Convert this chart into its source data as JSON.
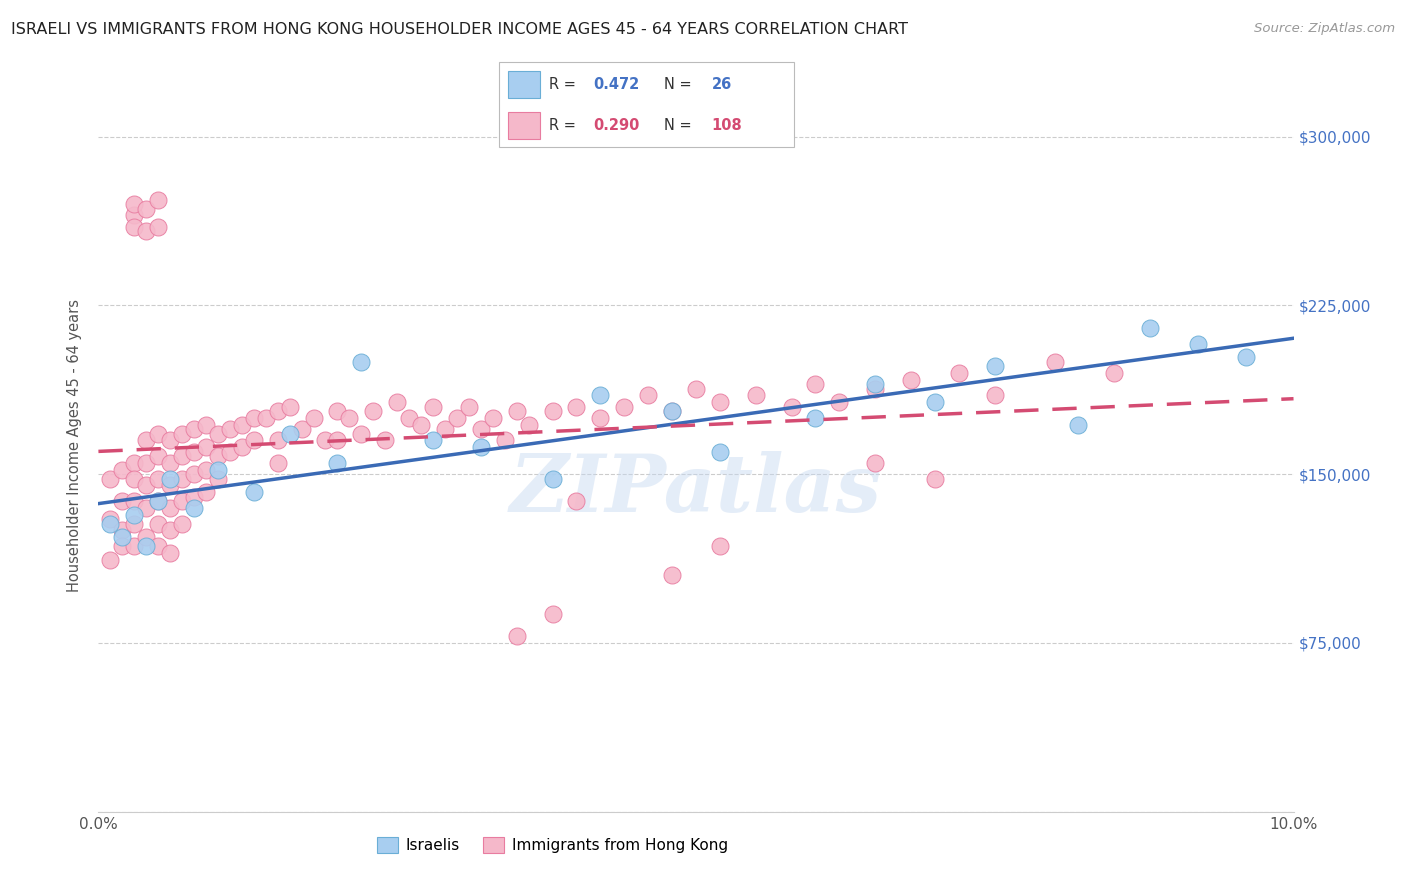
{
  "title": "ISRAELI VS IMMIGRANTS FROM HONG KONG HOUSEHOLDER INCOME AGES 45 - 64 YEARS CORRELATION CHART",
  "source": "Source: ZipAtlas.com",
  "ylabel": "Householder Income Ages 45 - 64 years",
  "xmin": 0.0,
  "xmax": 0.1,
  "ymin": 0,
  "ymax": 325000,
  "yticks": [
    0,
    75000,
    150000,
    225000,
    300000
  ],
  "right_ytick_labels": [
    "$75,000",
    "$150,000",
    "$225,000",
    "$300,000"
  ],
  "xtick_labels": [
    "0.0%",
    "",
    "",
    "",
    "",
    "10.0%"
  ],
  "israelis_color": "#a8cef0",
  "hk_color": "#f5b8ca",
  "israelis_edge": "#6aaed6",
  "hk_edge": "#e87ca0",
  "line_israelis_color": "#3a6ab5",
  "line_hk_color": "#d44b72",
  "watermark": "ZIPatlas",
  "isr_x": [
    0.001,
    0.002,
    0.003,
    0.004,
    0.005,
    0.006,
    0.008,
    0.01,
    0.013,
    0.016,
    0.02,
    0.022,
    0.028,
    0.032,
    0.038,
    0.042,
    0.048,
    0.052,
    0.06,
    0.065,
    0.07,
    0.075,
    0.082,
    0.088,
    0.092,
    0.096
  ],
  "isr_y": [
    128000,
    122000,
    132000,
    118000,
    138000,
    148000,
    135000,
    152000,
    142000,
    168000,
    155000,
    200000,
    165000,
    162000,
    148000,
    185000,
    178000,
    160000,
    175000,
    190000,
    182000,
    198000,
    172000,
    215000,
    208000,
    202000
  ],
  "hk_x": [
    0.001,
    0.001,
    0.001,
    0.002,
    0.002,
    0.002,
    0.002,
    0.003,
    0.003,
    0.003,
    0.003,
    0.003,
    0.003,
    0.003,
    0.003,
    0.004,
    0.004,
    0.004,
    0.004,
    0.004,
    0.004,
    0.004,
    0.005,
    0.005,
    0.005,
    0.005,
    0.005,
    0.005,
    0.005,
    0.005,
    0.006,
    0.006,
    0.006,
    0.006,
    0.006,
    0.006,
    0.007,
    0.007,
    0.007,
    0.007,
    0.007,
    0.008,
    0.008,
    0.008,
    0.008,
    0.009,
    0.009,
    0.009,
    0.009,
    0.01,
    0.01,
    0.01,
    0.011,
    0.011,
    0.012,
    0.012,
    0.013,
    0.013,
    0.014,
    0.015,
    0.015,
    0.015,
    0.016,
    0.017,
    0.018,
    0.019,
    0.02,
    0.02,
    0.021,
    0.022,
    0.023,
    0.024,
    0.025,
    0.026,
    0.027,
    0.028,
    0.029,
    0.03,
    0.031,
    0.032,
    0.033,
    0.034,
    0.035,
    0.036,
    0.038,
    0.04,
    0.042,
    0.044,
    0.046,
    0.048,
    0.05,
    0.052,
    0.055,
    0.058,
    0.06,
    0.062,
    0.065,
    0.068,
    0.072,
    0.075,
    0.08,
    0.085,
    0.065,
    0.07,
    0.048,
    0.052,
    0.035,
    0.038,
    0.04
  ],
  "hk_y": [
    148000,
    130000,
    112000,
    152000,
    138000,
    125000,
    118000,
    265000,
    270000,
    260000,
    155000,
    148000,
    138000,
    128000,
    118000,
    268000,
    258000,
    165000,
    155000,
    145000,
    135000,
    122000,
    272000,
    260000,
    168000,
    158000,
    148000,
    138000,
    128000,
    118000,
    165000,
    155000,
    145000,
    135000,
    125000,
    115000,
    168000,
    158000,
    148000,
    138000,
    128000,
    170000,
    160000,
    150000,
    140000,
    172000,
    162000,
    152000,
    142000,
    168000,
    158000,
    148000,
    170000,
    160000,
    172000,
    162000,
    175000,
    165000,
    175000,
    178000,
    165000,
    155000,
    180000,
    170000,
    175000,
    165000,
    178000,
    165000,
    175000,
    168000,
    178000,
    165000,
    182000,
    175000,
    172000,
    180000,
    170000,
    175000,
    180000,
    170000,
    175000,
    165000,
    178000,
    172000,
    178000,
    180000,
    175000,
    180000,
    185000,
    178000,
    188000,
    182000,
    185000,
    180000,
    190000,
    182000,
    188000,
    192000,
    195000,
    185000,
    200000,
    195000,
    155000,
    148000,
    105000,
    118000,
    78000,
    88000,
    138000
  ]
}
